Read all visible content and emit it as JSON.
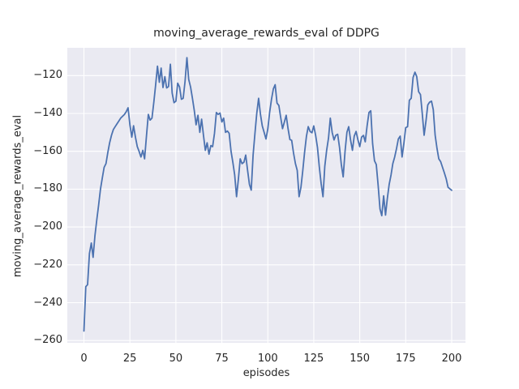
{
  "chart_data": {
    "type": "line",
    "title": "moving_average_rewards_eval of DDPG",
    "xlabel": "episodes",
    "ylabel": "moving_average_rewards_eval",
    "x_ticks": [
      0,
      25,
      50,
      75,
      100,
      125,
      150,
      175,
      200
    ],
    "y_ticks": [
      -120,
      -140,
      -160,
      -180,
      -200,
      -220,
      -240,
      -260
    ],
    "xlim": [
      -9,
      208
    ],
    "ylim": [
      -261.3,
      -105.2
    ],
    "grid": true,
    "legend_position": "none",
    "colors": {
      "line": "#4C72B0",
      "plot_background": "#EAEAF2",
      "grid": "#FFFFFF",
      "text": "#262626",
      "figure_background": "#FFFFFF"
    },
    "series": [
      {
        "name": "moving_average_rewards_eval",
        "x_start": 0,
        "x_step": 1,
        "values": [
          -255,
          -231.5,
          -230.5,
          -214,
          -208.5,
          -216,
          -204.5,
          -196,
          -188.5,
          -180,
          -174,
          -168.5,
          -166.5,
          -160.5,
          -155.5,
          -151.5,
          -148.5,
          -147,
          -145.5,
          -144,
          -142.5,
          -141.5,
          -140.5,
          -139,
          -137,
          -146,
          -152.5,
          -146.5,
          -152.5,
          -157.5,
          -160,
          -163,
          -159.5,
          -164,
          -152,
          -140.5,
          -143.5,
          -142.5,
          -134,
          -125,
          -115,
          -123.5,
          -116,
          -126.3,
          -120.5,
          -126.5,
          -125.8,
          -114,
          -129.2,
          -134.3,
          -133.5,
          -124,
          -126,
          -132.5,
          -132,
          -123,
          -110.5,
          -122,
          -126,
          -132,
          -138.5,
          -146,
          -141,
          -150,
          -143,
          -151.5,
          -159.5,
          -155.5,
          -161.5,
          -157,
          -157.5,
          -150.5,
          -139.5,
          -140.5,
          -139.8,
          -144.5,
          -142.5,
          -150,
          -149.3,
          -150.5,
          -160,
          -166,
          -172.5,
          -184,
          -174.5,
          -164,
          -166.5,
          -165.8,
          -162,
          -170,
          -177.5,
          -180.5,
          -162,
          -150.5,
          -140,
          -132,
          -140.5,
          -146.5,
          -150,
          -153.5,
          -148,
          -139.5,
          -132.5,
          -127,
          -124.8,
          -134.5,
          -135.8,
          -142,
          -148,
          -144.5,
          -141,
          -148,
          -153.8,
          -154.2,
          -161,
          -166.5,
          -170,
          -184,
          -179,
          -170.5,
          -160.5,
          -152,
          -147,
          -149.5,
          -150.2,
          -146.6,
          -151.5,
          -158,
          -168,
          -177,
          -184,
          -168,
          -159.5,
          -153,
          -142.5,
          -150,
          -154,
          -151.5,
          -151,
          -158,
          -167,
          -173.5,
          -160,
          -150,
          -147,
          -154,
          -159.5,
          -152,
          -149.5,
          -154,
          -157.5,
          -152.5,
          -151.6,
          -155,
          -146.5,
          -139.5,
          -138.6,
          -156,
          -165,
          -167,
          -178,
          -190.5,
          -194,
          -183.5,
          -193.7,
          -185,
          -177.5,
          -172.5,
          -166.5,
          -163,
          -158.5,
          -153.5,
          -152,
          -163,
          -156,
          -147.5,
          -147,
          -133,
          -132,
          -121,
          -118.2,
          -120.5,
          -128.5,
          -130,
          -140,
          -151.5,
          -144,
          -135.5,
          -134,
          -133.5,
          -138,
          -151.5,
          -158.5,
          -164,
          -165.5,
          -168.5,
          -171.3,
          -174.5,
          -179,
          -179.8,
          -180.6
        ]
      }
    ]
  }
}
